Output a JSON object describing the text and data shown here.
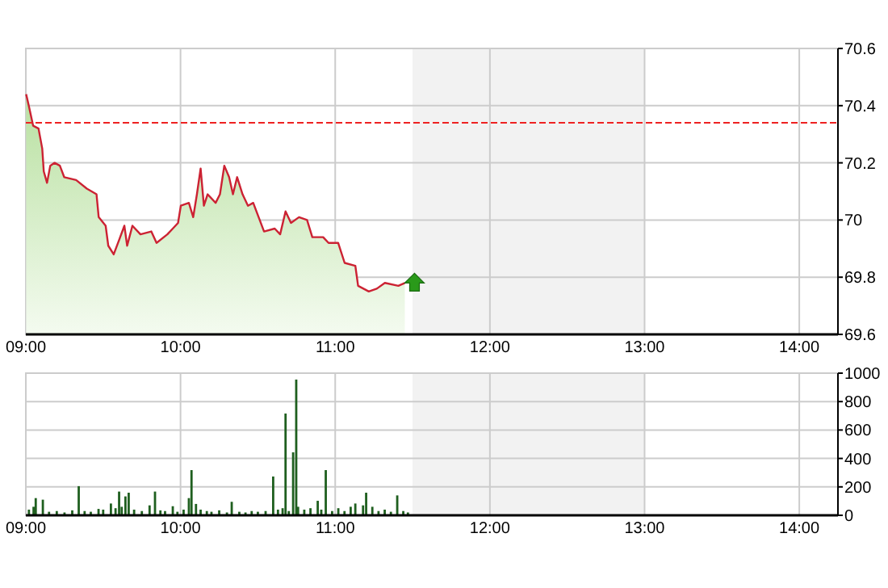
{
  "chart_data": [
    {
      "type": "area",
      "x": [
        9.002,
        9.019,
        9.047,
        9.082,
        9.106,
        9.116,
        9.137,
        9.158,
        9.186,
        9.22,
        9.248,
        9.325,
        9.394,
        9.457,
        9.471,
        9.516,
        9.533,
        9.568,
        9.603,
        9.637,
        9.655,
        9.689,
        9.741,
        9.811,
        9.845,
        9.915,
        9.95,
        9.984,
        10.002,
        10.054,
        10.082,
        10.106,
        10.13,
        10.151,
        10.175,
        10.227,
        10.255,
        10.283,
        10.314,
        10.339,
        10.366,
        10.401,
        10.436,
        10.47,
        10.505,
        10.54,
        10.609,
        10.644,
        10.679,
        10.714,
        10.766,
        10.818,
        10.852,
        10.922,
        10.957,
        11.019,
        11.061,
        11.13,
        11.148,
        11.217,
        11.269,
        11.321,
        11.408,
        11.45
      ],
      "series": [
        {
          "color": "#cc2233",
          "values": [
            70.44,
            70.4,
            70.33,
            70.32,
            70.25,
            70.17,
            70.13,
            70.19,
            70.2,
            70.19,
            70.15,
            70.14,
            70.11,
            70.09,
            70.01,
            69.98,
            69.91,
            69.88,
            69.93,
            69.98,
            69.91,
            69.98,
            69.95,
            69.96,
            69.92,
            69.95,
            69.97,
            69.99,
            70.05,
            70.06,
            70.01,
            70.09,
            70.18,
            70.05,
            70.09,
            70.06,
            70.09,
            70.19,
            70.15,
            70.09,
            70.15,
            70.09,
            70.05,
            70.06,
            70.01,
            69.96,
            69.97,
            69.95,
            70.03,
            69.99,
            70.01,
            70.0,
            69.94,
            69.94,
            69.92,
            69.92,
            69.85,
            69.84,
            69.77,
            69.75,
            69.76,
            69.78,
            69.77,
            69.78
          ]
        }
      ],
      "xlim": [
        9,
        14.25
      ],
      "xticks": [
        {
          "value": 9,
          "label": "09:00"
        },
        {
          "value": 10,
          "label": "10:00"
        },
        {
          "value": 11,
          "label": "11:00"
        },
        {
          "value": 12,
          "label": "12:00"
        },
        {
          "value": 13,
          "label": "13:00"
        },
        {
          "value": 14,
          "label": "14:00"
        }
      ],
      "ylim": [
        69.6,
        70.6
      ],
      "yticks": [
        69.6,
        69.8,
        70,
        70.2,
        70.4,
        70.6
      ],
      "grid": true,
      "line_style": "solid",
      "ref_lines": [
        {
          "axis": "y",
          "value": 70.34,
          "color": "#ee2222",
          "line_style": "dashed"
        }
      ],
      "bands": [
        {
          "axis": "x",
          "from": 11.5,
          "to": 13,
          "color": "#f2f2f2"
        }
      ]
    },
    {
      "type": "bar",
      "x": [
        9.02,
        9.05,
        9.064,
        9.11,
        9.15,
        9.2,
        9.25,
        9.3,
        9.342,
        9.38,
        9.42,
        9.47,
        9.5,
        9.55,
        9.58,
        9.603,
        9.62,
        9.644,
        9.665,
        9.7,
        9.75,
        9.8,
        9.835,
        9.87,
        9.9,
        9.95,
        9.98,
        10.02,
        10.054,
        10.071,
        10.1,
        10.13,
        10.17,
        10.2,
        10.25,
        10.3,
        10.331,
        10.38,
        10.42,
        10.46,
        10.5,
        10.55,
        10.599,
        10.63,
        10.66,
        10.679,
        10.7,
        10.728,
        10.748,
        10.76,
        10.8,
        10.84,
        10.887,
        10.91,
        10.939,
        10.98,
        11.02,
        11.06,
        11.1,
        11.13,
        11.18,
        11.2,
        11.24,
        11.28,
        11.32,
        11.36,
        11.401,
        11.44,
        11.47
      ],
      "values": [
        40,
        60,
        121,
        110,
        25,
        30,
        20,
        35,
        205,
        30,
        25,
        45,
        40,
        83,
        50,
        167,
        60,
        133,
        159,
        40,
        30,
        70,
        167,
        35,
        30,
        64,
        25,
        40,
        121,
        318,
        80,
        40,
        30,
        25,
        35,
        20,
        95,
        25,
        20,
        30,
        25,
        30,
        273,
        40,
        50,
        716,
        30,
        443,
        955,
        60,
        40,
        50,
        102,
        40,
        318,
        30,
        50,
        30,
        60,
        83,
        70,
        159,
        60,
        30,
        40,
        25,
        140,
        30,
        20
      ],
      "color": "#1f5f1f",
      "xlim": [
        9,
        14.25
      ],
      "xticks": [
        {
          "value": 9,
          "label": "09:00"
        },
        {
          "value": 10,
          "label": "10:00"
        },
        {
          "value": 11,
          "label": "11:00"
        },
        {
          "value": 12,
          "label": "12:00"
        },
        {
          "value": 13,
          "label": "13:00"
        },
        {
          "value": 14,
          "label": "14:00"
        }
      ],
      "ylim": [
        0,
        1000
      ],
      "yticks": [
        0,
        200,
        400,
        600,
        800,
        1000
      ],
      "grid": true,
      "bands": [
        {
          "axis": "x",
          "from": 11.5,
          "to": 13,
          "color": "#f2f2f2"
        }
      ]
    }
  ]
}
